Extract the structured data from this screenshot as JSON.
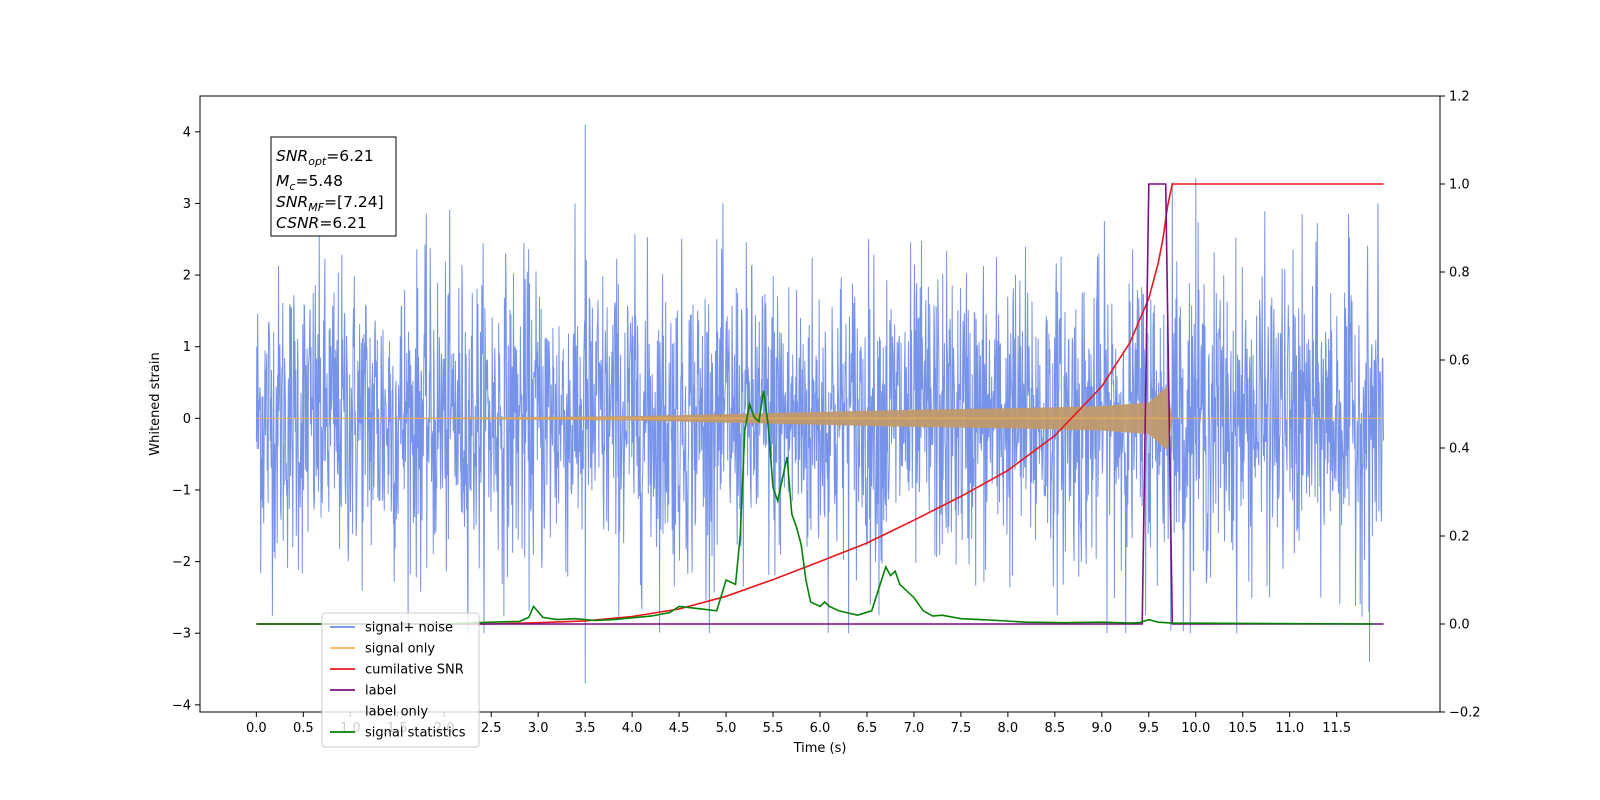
{
  "chart_data": {
    "type": "line",
    "xlabel": "Time (s)",
    "ylabel_left": "Whitened strain",
    "ylabel_right": "",
    "xlim": [
      -0.6,
      12.6
    ],
    "ylim_left": [
      -4.1,
      4.5
    ],
    "ylim_right": [
      -0.2,
      1.2
    ],
    "x_ticks": [
      "0.0",
      "0.5",
      "1.0",
      "1.5",
      "2.0",
      "2.5",
      "3.0",
      "3.5",
      "4.0",
      "4.5",
      "5.0",
      "5.5",
      "6.0",
      "6.5",
      "7.0",
      "7.5",
      "8.0",
      "8.5",
      "9.0",
      "9.5",
      "10.0",
      "10.5",
      "11.0",
      "11.5"
    ],
    "y_ticks_left": [
      "4",
      "3",
      "2",
      "1",
      "0",
      "−1",
      "−2",
      "−3",
      "−4"
    ],
    "y_ticks_right": [
      "1.2",
      "1.0",
      "0.8",
      "0.6",
      "0.4",
      "0.2",
      "0.0",
      "−0.2"
    ],
    "grid": false,
    "legend_position": "lower-left",
    "annotation": {
      "snr_opt": "6.21",
      "mc": "5.48",
      "snr_mf": "[7.24]",
      "csnr": "6.21"
    },
    "series": [
      {
        "name": "signal+ noise",
        "color": "#6f8ce8",
        "axis": "left",
        "description_values": {
          "approx_range": [
            -3.7,
            4.15
          ],
          "x_range": [
            0.0,
            12.0
          ],
          "notable_peaks": [
            [
              3.5,
              4.1
            ],
            [
              10.0,
              3.35
            ],
            [
              9.75,
              3.3
            ],
            [
              3.5,
              -3.7
            ],
            [
              11.85,
              -3.4
            ]
          ]
        }
      },
      {
        "name": "signal only",
        "color": "#ffb347",
        "axis": "left",
        "envelope": {
          "x": [
            0.0,
            2.0,
            4.0,
            5.0,
            6.0,
            7.0,
            8.0,
            9.0,
            9.5,
            9.7,
            9.75,
            12.0
          ],
          "amplitude": [
            0.0,
            0.01,
            0.03,
            0.06,
            0.09,
            0.12,
            0.14,
            0.17,
            0.22,
            0.45,
            0.0,
            0.0
          ]
        }
      },
      {
        "name": "cumilative SNR",
        "color": "#e8181b",
        "axis": "right",
        "x": [
          0.0,
          2.5,
          3.0,
          3.5,
          4.0,
          4.5,
          5.0,
          5.5,
          6.0,
          6.5,
          7.0,
          7.5,
          8.0,
          8.5,
          9.0,
          9.3,
          9.5,
          9.6,
          9.65,
          9.7,
          9.75,
          12.0
        ],
        "y": [
          0.0,
          0.0,
          0.003,
          0.007,
          0.017,
          0.034,
          0.063,
          0.101,
          0.142,
          0.184,
          0.236,
          0.29,
          0.349,
          0.428,
          0.54,
          0.64,
          0.74,
          0.82,
          0.875,
          0.95,
          1.0,
          1.0
        ]
      },
      {
        "name": "label",
        "color": "#7b0f84",
        "axis": "right",
        "x": [
          0.0,
          9.43,
          9.5,
          9.68,
          9.75,
          12.0
        ],
        "y": [
          0.0,
          0.0,
          1.0,
          1.0,
          0.0,
          0.0
        ]
      },
      {
        "name": "signal statistics",
        "color": "#058205",
        "axis": "right",
        "x": [
          0.0,
          2.0,
          2.5,
          2.8,
          2.9,
          2.95,
          3.05,
          3.2,
          3.4,
          3.6,
          3.8,
          4.0,
          4.2,
          4.4,
          4.5,
          4.7,
          4.9,
          5.0,
          5.05,
          5.1,
          5.15,
          5.2,
          5.25,
          5.3,
          5.35,
          5.4,
          5.45,
          5.5,
          5.55,
          5.6,
          5.65,
          5.7,
          5.75,
          5.8,
          5.85,
          5.9,
          6.0,
          6.05,
          6.1,
          6.2,
          6.4,
          6.55,
          6.7,
          6.75,
          6.8,
          6.85,
          6.9,
          7.0,
          7.1,
          7.2,
          7.3,
          7.5,
          7.7,
          7.9,
          8.2,
          8.6,
          9.0,
          9.3,
          9.4,
          9.5,
          9.6,
          9.75,
          11.9
        ],
        "y": [
          0.0,
          0.0,
          0.004,
          0.006,
          0.015,
          0.04,
          0.015,
          0.01,
          0.012,
          0.008,
          0.01,
          0.014,
          0.018,
          0.026,
          0.04,
          0.035,
          0.03,
          0.1,
          0.095,
          0.09,
          0.2,
          0.44,
          0.5,
          0.47,
          0.46,
          0.53,
          0.45,
          0.31,
          0.28,
          0.33,
          0.38,
          0.25,
          0.22,
          0.18,
          0.1,
          0.05,
          0.04,
          0.05,
          0.04,
          0.03,
          0.02,
          0.03,
          0.13,
          0.11,
          0.12,
          0.09,
          0.08,
          0.06,
          0.03,
          0.018,
          0.02,
          0.012,
          0.01,
          0.008,
          0.004,
          0.003,
          0.004,
          0.002,
          0.003,
          0.01,
          0.004,
          0.002,
          0.0
        ]
      }
    ],
    "legend": [
      {
        "label": "signal+ noise",
        "color": "#6f8ce8"
      },
      {
        "label": "signal only",
        "color": "#ffb347"
      },
      {
        "label": "cumilative SNR",
        "color": "#e8181b"
      },
      {
        "label": "label",
        "color": "#7b0f84"
      },
      {
        "label": "label only",
        "color": "#ffffff"
      },
      {
        "label": "signal statistics",
        "color": "#058205"
      }
    ]
  }
}
